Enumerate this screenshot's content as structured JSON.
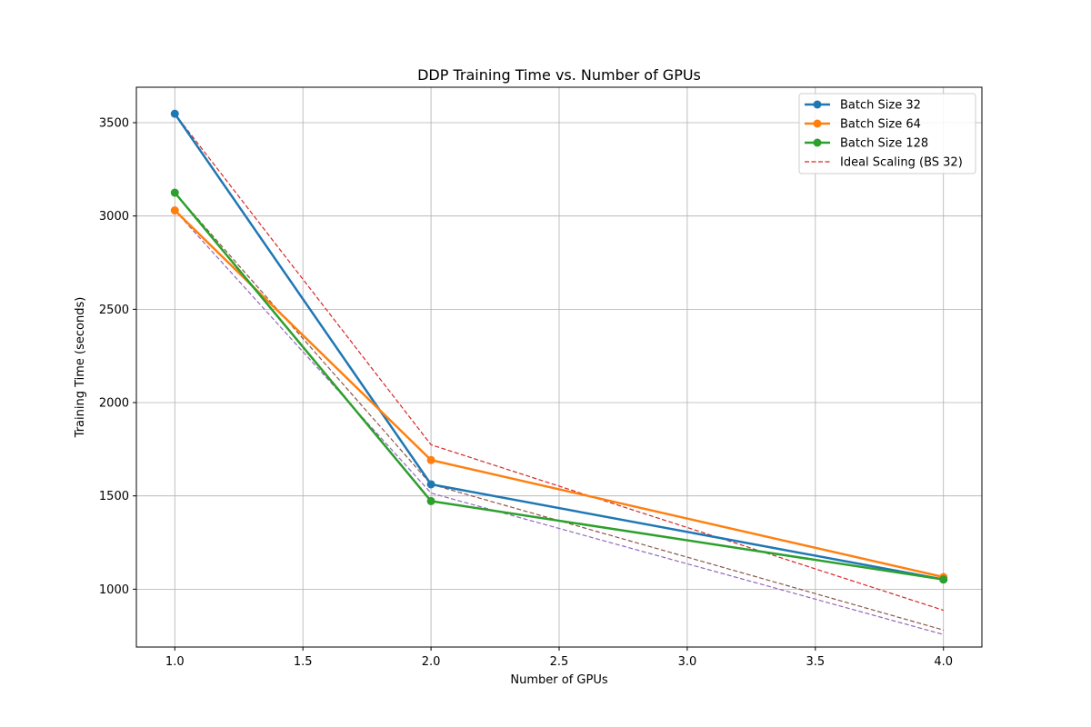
{
  "chart_data": {
    "type": "line",
    "title": "DDP Training Time vs. Number of GPUs",
    "xlabel": "Number of GPUs",
    "ylabel": "Training Time (seconds)",
    "xlim": [
      0.85,
      4.15
    ],
    "ylim": [
      690,
      3690
    ],
    "grid": true,
    "legend_position": "top-right",
    "x_ticks": [
      1.0,
      1.5,
      2.0,
      2.5,
      3.0,
      3.5,
      4.0
    ],
    "x_tick_labels": [
      "1.0",
      "1.5",
      "2.0",
      "2.5",
      "3.0",
      "3.5",
      "4.0"
    ],
    "y_ticks": [
      1000,
      1500,
      2000,
      2500,
      3000,
      3500
    ],
    "y_tick_labels": [
      "1000",
      "1500",
      "2000",
      "2500",
      "3000",
      "3500"
    ],
    "x": [
      1,
      2,
      4
    ],
    "series": [
      {
        "name": "Batch Size 32",
        "values": [
          3548,
          1562,
          1052
        ],
        "color": "#1f77b4",
        "style": "solid",
        "marker": true
      },
      {
        "name": "Batch Size 64",
        "values": [
          3030,
          1692,
          1065
        ],
        "color": "#ff7f0e",
        "style": "solid",
        "marker": true
      },
      {
        "name": "Batch Size 128",
        "values": [
          3125,
          1472,
          1052
        ],
        "color": "#2ca02c",
        "style": "solid",
        "marker": true
      },
      {
        "name": "Ideal Scaling (BS 32)",
        "values": [
          3548,
          1774,
          887
        ],
        "color": "#d62728",
        "style": "dashed",
        "marker": false
      },
      {
        "values": [
          3030,
          1515,
          757
        ],
        "color": "#9467bd",
        "style": "dashed",
        "marker": false
      },
      {
        "values": [
          3125,
          1562,
          781
        ],
        "color": "#8c564b",
        "style": "dashed",
        "marker": false
      }
    ],
    "legend_entries": [
      "Batch Size 32",
      "Batch Size 64",
      "Batch Size 128",
      "Ideal Scaling (BS 32)"
    ]
  }
}
